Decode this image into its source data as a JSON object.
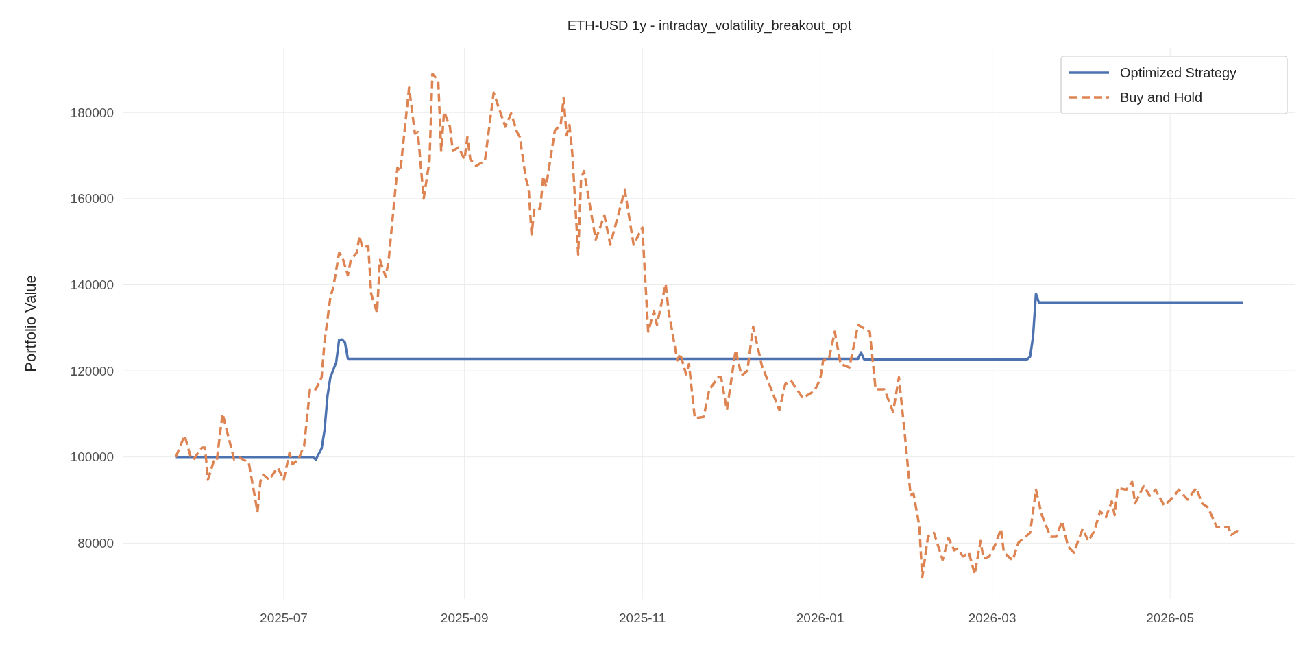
{
  "chart_data": {
    "type": "line",
    "title": "ETH-USD 1y - intraday_volatility_breakout_opt",
    "ylabel": "Portfolio Value",
    "xlim": [
      "2025-05-07",
      "2026-06-13"
    ],
    "ylim": [
      67000,
      195000
    ],
    "xticks": [
      "2025-07",
      "2025-09",
      "2025-11",
      "2026-01",
      "2026-03",
      "2026-05"
    ],
    "yticks": [
      80000,
      100000,
      120000,
      140000,
      160000,
      180000
    ],
    "grid": true,
    "legend": "top right",
    "marker": "none",
    "series": [
      {
        "name": "Optimized Strategy",
        "color": "#4c72b0",
        "line_style": "solid",
        "x": [
          "2025-05-25",
          "2025-07-11",
          "2025-07-12",
          "2025-07-14",
          "2025-07-15",
          "2025-07-16",
          "2025-07-17",
          "2025-07-19",
          "2025-07-20",
          "2025-07-21",
          "2025-07-22",
          "2025-07-23",
          "2026-01-14",
          "2026-01-15",
          "2026-01-16",
          "2026-03-13",
          "2026-03-14",
          "2026-03-15",
          "2026-03-16",
          "2026-03-17",
          "2026-05-26"
        ],
        "values": [
          100000,
          100000,
          99400,
          102000,
          106200,
          114100,
          118500,
          122000,
          127200,
          127300,
          126600,
          122800,
          122800,
          124300,
          122700,
          122700,
          123300,
          127900,
          137900,
          135900,
          135900
        ]
      },
      {
        "name": "Buy and Hold",
        "color": "#dd8452",
        "line_style": "dashed",
        "x": [
          "2025-05-25",
          "2025-05-28",
          "2025-05-30",
          "2025-05-31",
          "2025-06-03",
          "2025-06-04",
          "2025-06-05",
          "2025-06-07",
          "2025-06-08",
          "2025-06-10",
          "2025-06-14",
          "2025-06-16",
          "2025-06-19",
          "2025-06-21",
          "2025-06-22",
          "2025-06-23",
          "2025-06-24",
          "2025-06-26",
          "2025-06-28",
          "2025-06-29",
          "2025-07-01",
          "2025-07-03",
          "2025-07-04",
          "2025-07-06",
          "2025-07-08",
          "2025-07-10",
          "2025-07-12",
          "2025-07-14",
          "2025-07-15",
          "2025-07-17",
          "2025-07-18",
          "2025-07-20",
          "2025-07-21",
          "2025-07-23",
          "2025-07-24",
          "2025-07-26",
          "2025-07-27",
          "2025-07-28",
          "2025-07-30",
          "2025-07-31",
          "2025-08-02",
          "2025-08-03",
          "2025-08-05",
          "2025-08-06",
          "2025-08-09",
          "2025-08-10",
          "2025-08-13",
          "2025-08-15",
          "2025-08-16",
          "2025-08-18",
          "2025-08-20",
          "2025-08-21",
          "2025-08-23",
          "2025-08-24",
          "2025-08-25",
          "2025-08-27",
          "2025-08-28",
          "2025-08-30",
          "2025-09-01",
          "2025-09-02",
          "2025-09-03",
          "2025-09-05",
          "2025-09-08",
          "2025-09-11",
          "2025-09-15",
          "2025-09-17",
          "2025-09-19",
          "2025-09-20",
          "2025-09-22",
          "2025-09-23",
          "2025-09-24",
          "2025-09-25",
          "2025-09-27",
          "2025-09-28",
          "2025-09-29",
          "2025-10-02",
          "2025-10-04",
          "2025-10-05",
          "2025-10-06",
          "2025-10-07",
          "2025-10-08",
          "2025-10-10",
          "2025-10-11",
          "2025-10-12",
          "2025-10-14",
          "2025-10-16",
          "2025-10-19",
          "2025-10-21",
          "2025-10-26",
          "2025-10-29",
          "2025-11-01",
          "2025-11-03",
          "2025-11-05",
          "2025-11-06",
          "2025-11-07",
          "2025-11-09",
          "2025-11-10",
          "2025-11-13",
          "2025-11-14",
          "2025-11-16",
          "2025-11-17",
          "2025-11-19",
          "2025-11-22",
          "2025-11-24",
          "2025-11-27",
          "2025-11-28",
          "2025-11-30",
          "2025-12-03",
          "2025-12-05",
          "2025-12-07",
          "2025-12-09",
          "2025-12-12",
          "2025-12-15",
          "2025-12-18",
          "2025-12-20",
          "2025-12-22",
          "2025-12-26",
          "2025-12-30",
          "2026-01-01",
          "2026-01-02",
          "2026-01-04",
          "2026-01-06",
          "2026-01-08",
          "2026-01-11",
          "2026-01-14",
          "2026-01-17",
          "2026-01-18",
          "2026-01-20",
          "2026-01-23",
          "2026-01-26",
          "2026-01-28",
          "2026-01-30",
          "2026-02-01",
          "2026-02-02",
          "2026-02-04",
          "2026-02-05",
          "2026-02-07",
          "2026-02-09",
          "2026-02-12",
          "2026-02-14",
          "2026-02-16",
          "2026-02-17",
          "2026-02-19",
          "2026-02-21",
          "2026-02-23",
          "2026-02-25",
          "2026-02-26",
          "2026-02-28",
          "2026-03-02",
          "2026-03-04",
          "2026-03-05",
          "2026-03-08",
          "2026-03-10",
          "2026-03-14",
          "2026-03-16",
          "2026-03-18",
          "2026-03-21",
          "2026-03-23",
          "2026-03-25",
          "2026-03-27",
          "2026-03-29",
          "2026-04-01",
          "2026-04-03",
          "2026-04-05",
          "2026-04-07",
          "2026-04-09",
          "2026-04-11",
          "2026-04-12",
          "2026-04-13",
          "2026-04-16",
          "2026-04-18",
          "2026-04-19",
          "2026-04-22",
          "2026-04-24",
          "2026-04-26",
          "2026-04-29",
          "2026-05-02",
          "2026-05-04",
          "2026-05-07",
          "2026-05-10",
          "2026-05-12",
          "2026-05-14",
          "2026-05-17",
          "2026-05-20",
          "2026-05-21",
          "2026-05-22",
          "2026-05-24",
          "2026-05-25"
        ],
        "values": [
          100000,
          105000,
          100200,
          99400,
          102200,
          102200,
          94700,
          99000,
          99000,
          110100,
          99400,
          99800,
          98700,
          91100,
          87200,
          94300,
          95900,
          94700,
          96700,
          97500,
          94700,
          101000,
          98300,
          99400,
          102600,
          115700,
          115700,
          118500,
          126800,
          137100,
          139400,
          147400,
          146600,
          142200,
          145800,
          147400,
          151300,
          148600,
          149000,
          137900,
          133500,
          145800,
          141800,
          145800,
          167200,
          166400,
          185800,
          175100,
          175500,
          160000,
          168800,
          189000,
          187400,
          171100,
          180200,
          176700,
          171100,
          171900,
          169100,
          174300,
          169100,
          167600,
          168800,
          184600,
          176700,
          179800,
          175500,
          174300,
          164800,
          162400,
          151700,
          157700,
          157700,
          165200,
          162800,
          175900,
          177100,
          183400,
          174700,
          177100,
          170300,
          147000,
          164800,
          166400,
          158500,
          150500,
          156100,
          149300,
          162000,
          149300,
          153300,
          129100,
          133900,
          130700,
          133900,
          140200,
          133900,
          122400,
          124000,
          119200,
          121600,
          109000,
          109300,
          115700,
          118500,
          118500,
          110900,
          124800,
          118900,
          120000,
          130300,
          121200,
          116100,
          110900,
          116900,
          117700,
          113700,
          115300,
          118100,
          122400,
          122800,
          129100,
          121600,
          120800,
          130700,
          129500,
          129100,
          115700,
          115700,
          110500,
          118500,
          105400,
          91100,
          91500,
          84000,
          72000,
          81600,
          82400,
          76100,
          81200,
          78300,
          78700,
          76900,
          77800,
          72800,
          80500,
          76400,
          76900,
          79600,
          83300,
          77800,
          76000,
          80100,
          82400,
          92400,
          86500,
          81500,
          81500,
          85100,
          79200,
          77800,
          83300,
          80500,
          82800,
          87400,
          86000,
          89700,
          86500,
          92800,
          92400,
          94200,
          89200,
          93300,
          91000,
          92400,
          88700,
          90600,
          92400,
          90100,
          92800,
          89200,
          88300,
          83700,
          83700,
          83700,
          81900,
          82800,
          82400
        ]
      }
    ]
  }
}
